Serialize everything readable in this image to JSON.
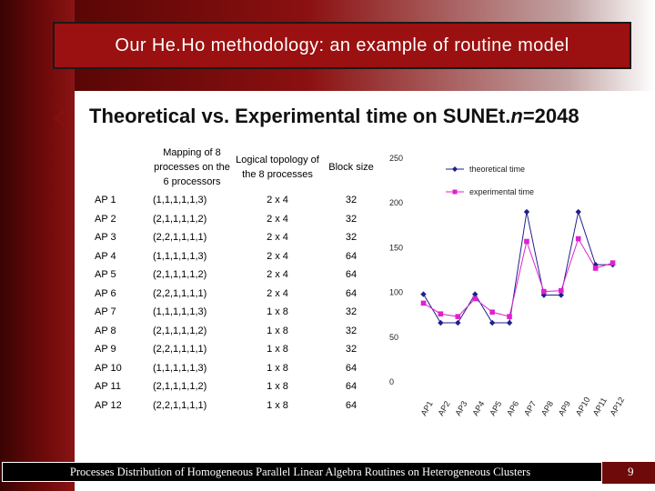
{
  "title": "Our He.Ho methodology: an example of routine model",
  "subtitle": {
    "main": "Theoretical vs. Experimental time on SUNEt.",
    "italic": "n",
    "suffix": "=2048"
  },
  "table": {
    "headers": [
      "",
      "Mapping of 8 processes on the 6 processors",
      "Logical topology of the 8 processes",
      "Block size"
    ],
    "rows": [
      [
        "AP 1",
        "(1,1,1,1,1,3)",
        "2 x 4",
        "32"
      ],
      [
        "AP 2",
        "(2,1,1,1,1,2)",
        "2 x 4",
        "32"
      ],
      [
        "AP 3",
        "(2,2,1,1,1,1)",
        "2 x 4",
        "32"
      ],
      [
        "AP 4",
        "(1,1,1,1,1,3)",
        "2 x 4",
        "64"
      ],
      [
        "AP 5",
        "(2,1,1,1,1,2)",
        "2 x 4",
        "64"
      ],
      [
        "AP 6",
        "(2,2,1,1,1,1)",
        "2 x 4",
        "64"
      ],
      [
        "AP 7",
        "(1,1,1,1,1,3)",
        "1 x 8",
        "32"
      ],
      [
        "AP 8",
        "(2,1,1,1,1,2)",
        "1 x 8",
        "32"
      ],
      [
        "AP 9",
        "(2,2,1,1,1,1)",
        "1 x 8",
        "32"
      ],
      [
        "AP 10",
        "(1,1,1,1,1,3)",
        "1 x 8",
        "64"
      ],
      [
        "AP 11",
        "(2,1,1,1,1,2)",
        "1 x 8",
        "64"
      ],
      [
        "AP 12",
        "(2,2,1,1,1,1)",
        "1 x 8",
        "64"
      ]
    ]
  },
  "chart_data": {
    "type": "line",
    "categories": [
      "AP1",
      "AP2",
      "AP3",
      "AP4",
      "AP5",
      "AP6",
      "AP7",
      "AP8",
      "AP9",
      "AP10",
      "AP11",
      "AP12"
    ],
    "series": [
      {
        "name": "theoretical time",
        "values": [
          98,
          66,
          66,
          98,
          66,
          66,
          190,
          97,
          97,
          190,
          131,
          131
        ],
        "color": "#1f1f8c",
        "marker": "diamond"
      },
      {
        "name": "experimental time",
        "values": [
          88,
          76,
          73,
          93,
          78,
          73,
          157,
          101,
          102,
          160,
          127,
          133
        ],
        "color": "#e020d0",
        "marker": "square"
      }
    ],
    "yticks": [
      0,
      50,
      100,
      150,
      200,
      250
    ],
    "ylim": [
      0,
      250
    ],
    "grid": false,
    "legend": "top-right"
  },
  "footer": {
    "text": "Processes Distribution of Homogeneous Parallel Linear Algebra Routines on Heterogeneous Clusters",
    "page": "9"
  },
  "colors": {
    "title_bg": "#9b1010",
    "sidebar": "#6e0a0a"
  }
}
